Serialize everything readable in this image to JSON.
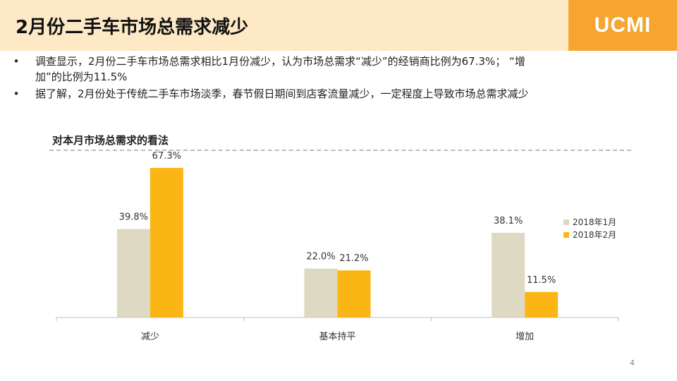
{
  "header": {
    "title": "2月份二手车市场总需求减少",
    "logo_text": "UCMI"
  },
  "bullets": [
    {
      "marker": "•",
      "line1": "调查显示，2月份二手车市场总需求相比1月份减少，认为市场总需求“减少”的经销商比例为67.3%；  “增",
      "line2": "加”的比例为11.5%"
    },
    {
      "marker": "•",
      "line1": "据了解，2月份处于传统二手车市场淡季，春节假日期间到店客流量减少，一定程度上导致市场总需求减少"
    }
  ],
  "page_number": "4",
  "colors": {
    "header_band": "#fde9c6",
    "logo_box": "#f5a530",
    "series_jan": "#ddd9c3",
    "series_feb": "#fbb615"
  },
  "chart_data": {
    "type": "bar",
    "title": "对本月市场总需求的看法",
    "categories": [
      "减少",
      "基本持平",
      "增加"
    ],
    "series": [
      {
        "name": "2018年1月",
        "values": [
          39.8,
          22.0,
          38.1
        ],
        "labels": [
          "39.8%",
          "22.0%",
          "38.1%"
        ],
        "color": "#ddd9c3"
      },
      {
        "name": "2018年2月",
        "values": [
          67.3,
          21.2,
          11.5
        ],
        "labels": [
          "67.3%",
          "21.2%",
          "11.5%"
        ],
        "color": "#fbb615"
      }
    ],
    "ylim": [
      0,
      75
    ],
    "grid": false,
    "legend_position": "right"
  }
}
